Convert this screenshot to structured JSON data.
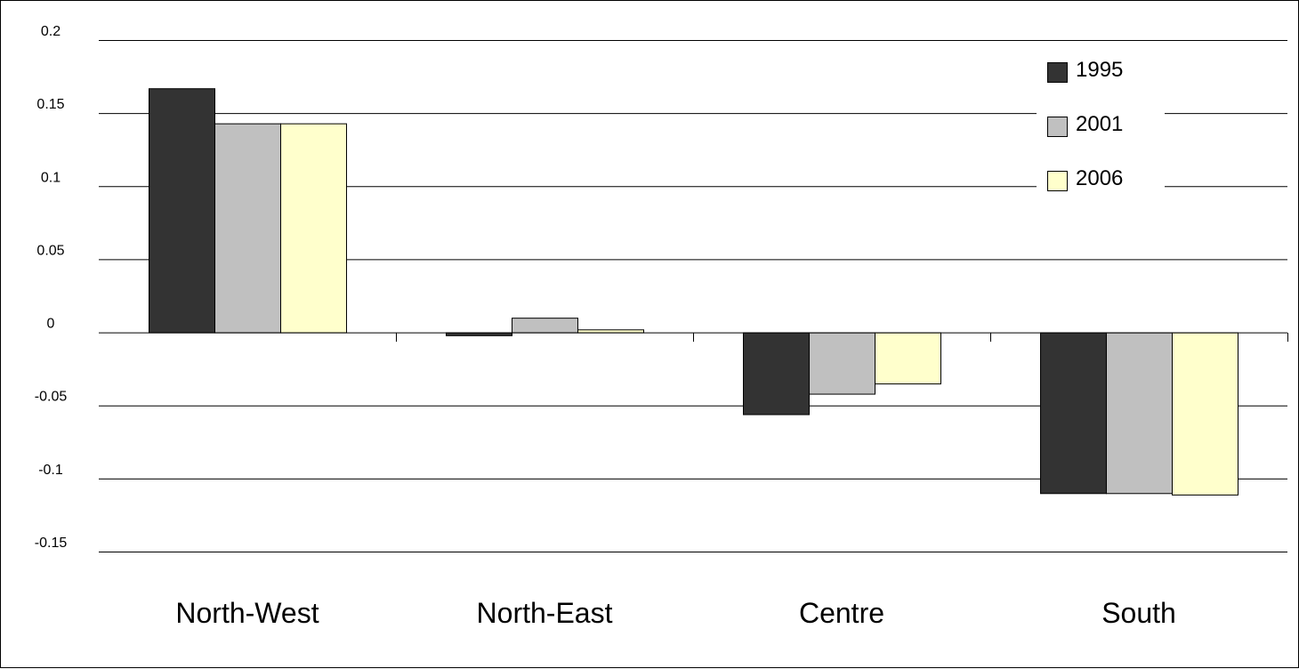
{
  "chart_data": {
    "type": "bar",
    "title": "",
    "xlabel": "",
    "ylabel": "",
    "categories": [
      "North-West",
      "North-East",
      "Centre",
      "South"
    ],
    "series": [
      {
        "name": "1995",
        "color": "#333333",
        "values": [
          0.167,
          -0.002,
          -0.056,
          -0.11
        ]
      },
      {
        "name": "2001",
        "color": "#c0c0c0",
        "values": [
          0.143,
          0.01,
          -0.042,
          -0.11
        ]
      },
      {
        "name": "2006",
        "color": "#ffffcc",
        "values": [
          0.143,
          0.002,
          -0.035,
          -0.111
        ]
      }
    ],
    "ylim": [
      -0.15,
      0.2
    ],
    "yticks": [
      0.2,
      0.15,
      0.1,
      0.05,
      0,
      -0.05,
      -0.1,
      -0.15
    ],
    "ytick_labels": [
      "0.2",
      "0.15",
      "0.1",
      "0.05",
      "0",
      "-0.05",
      "-0.1",
      "-0.15"
    ],
    "grid": true,
    "legend_position": "top-right",
    "bar_outline_color": "#000000",
    "gridline_color": "#000000"
  }
}
